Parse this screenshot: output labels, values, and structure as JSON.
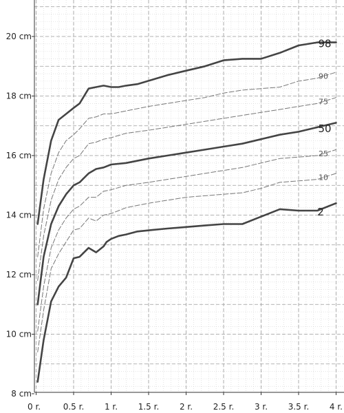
{
  "chart_data": {
    "type": "line",
    "title": "",
    "xlabel": "",
    "ylabel": "",
    "xlim": [
      0,
      4.0
    ],
    "ylim": [
      8,
      21
    ],
    "x_ticks": [
      {
        "value": 0,
        "label": "0 r."
      },
      {
        "value": 0.5,
        "label": "0.5 r."
      },
      {
        "value": 1,
        "label": "1 r."
      },
      {
        "value": 1.5,
        "label": "1.5 r."
      },
      {
        "value": 2,
        "label": "2 r."
      },
      {
        "value": 2.5,
        "label": "2.5 r."
      },
      {
        "value": 3,
        "label": "3 r."
      },
      {
        "value": 3.5,
        "label": "3.5 r."
      },
      {
        "value": 4,
        "label": "4 r."
      }
    ],
    "y_ticks": [
      {
        "value": 8,
        "label": "8 cm"
      },
      {
        "value": 10,
        "label": "10 cm"
      },
      {
        "value": 12,
        "label": "12 cm"
      },
      {
        "value": 14,
        "label": "14 cm"
      },
      {
        "value": 16,
        "label": "16 cm"
      },
      {
        "value": 18,
        "label": "18 cm"
      },
      {
        "value": 20,
        "label": "20 cm"
      }
    ],
    "grid": true,
    "series": [
      {
        "name": "2",
        "style": "major",
        "x": [
          0.02,
          0.1,
          0.2,
          0.3,
          0.4,
          0.5,
          0.58,
          0.7,
          0.8,
          0.9,
          0.94,
          1.0,
          1.1,
          1.2,
          1.35,
          1.55,
          1.75,
          2.0,
          2.25,
          2.5,
          2.75,
          3.0,
          3.25,
          3.5,
          3.75,
          4.0
        ],
        "values": [
          8.4,
          9.8,
          11.1,
          11.6,
          11.9,
          12.55,
          12.6,
          12.9,
          12.75,
          12.95,
          13.1,
          13.2,
          13.3,
          13.35,
          13.45,
          13.5,
          13.55,
          13.6,
          13.65,
          13.7,
          13.7,
          13.95,
          14.2,
          14.15,
          14.15,
          14.4
        ],
        "label": "2"
      },
      {
        "name": "10",
        "style": "minor",
        "x": [
          0.02,
          0.1,
          0.2,
          0.3,
          0.4,
          0.5,
          0.58,
          0.7,
          0.8,
          0.9,
          1.0,
          1.2,
          1.5,
          1.75,
          2.0,
          2.25,
          2.5,
          2.75,
          3.0,
          3.25,
          3.5,
          3.75,
          4.0
        ],
        "values": [
          9.4,
          10.8,
          12.2,
          12.7,
          13.1,
          13.5,
          13.55,
          13.9,
          13.8,
          14.0,
          14.05,
          14.25,
          14.4,
          14.5,
          14.6,
          14.65,
          14.7,
          14.75,
          14.9,
          15.1,
          15.15,
          15.2,
          15.4
        ],
        "label": "10"
      },
      {
        "name": "25",
        "style": "minor",
        "x": [
          0.02,
          0.1,
          0.2,
          0.3,
          0.4,
          0.5,
          0.58,
          0.7,
          0.8,
          0.9,
          1.0,
          1.2,
          1.5,
          1.75,
          2.0,
          2.25,
          2.5,
          2.75,
          3.0,
          3.25,
          3.5,
          3.75,
          4.0
        ],
        "values": [
          10.1,
          11.6,
          12.9,
          13.5,
          13.9,
          14.2,
          14.3,
          14.6,
          14.6,
          14.8,
          14.85,
          15.0,
          15.1,
          15.2,
          15.3,
          15.4,
          15.5,
          15.6,
          15.75,
          15.9,
          15.95,
          16.0,
          16.2
        ],
        "label": "25"
      },
      {
        "name": "50",
        "style": "major",
        "x": [
          0.02,
          0.1,
          0.2,
          0.3,
          0.4,
          0.5,
          0.58,
          0.7,
          0.8,
          0.9,
          1.0,
          1.2,
          1.5,
          1.75,
          2.0,
          2.25,
          2.5,
          2.75,
          3.0,
          3.25,
          3.5,
          3.75,
          4.0
        ],
        "values": [
          11.0,
          12.6,
          13.7,
          14.3,
          14.7,
          15.0,
          15.1,
          15.4,
          15.55,
          15.6,
          15.7,
          15.75,
          15.9,
          16.0,
          16.1,
          16.2,
          16.3,
          16.4,
          16.55,
          16.7,
          16.8,
          16.95,
          17.1
        ],
        "label": "50"
      },
      {
        "name": "75",
        "style": "minor",
        "x": [
          0.02,
          0.1,
          0.2,
          0.3,
          0.4,
          0.5,
          0.58,
          0.7,
          0.8,
          0.9,
          1.0,
          1.2,
          1.5,
          1.75,
          2.0,
          2.25,
          2.5,
          2.75,
          3.0,
          3.25,
          3.5,
          3.75,
          4.0
        ],
        "values": [
          11.8,
          13.3,
          14.5,
          15.2,
          15.6,
          15.9,
          16.0,
          16.4,
          16.45,
          16.55,
          16.6,
          16.75,
          16.85,
          16.95,
          17.05,
          17.15,
          17.25,
          17.35,
          17.45,
          17.55,
          17.65,
          17.75,
          17.95
        ],
        "label": "75"
      },
      {
        "name": "90",
        "style": "minor",
        "x": [
          0.02,
          0.1,
          0.2,
          0.3,
          0.4,
          0.5,
          0.58,
          0.7,
          0.8,
          0.9,
          1.0,
          1.2,
          1.5,
          1.75,
          2.0,
          2.25,
          2.5,
          2.75,
          3.0,
          3.25,
          3.5,
          3.75,
          4.0
        ],
        "values": [
          12.6,
          14.2,
          15.4,
          16.1,
          16.5,
          16.7,
          16.9,
          17.25,
          17.3,
          17.4,
          17.4,
          17.5,
          17.65,
          17.75,
          17.85,
          17.95,
          18.1,
          18.2,
          18.25,
          18.3,
          18.5,
          18.6,
          18.8
        ],
        "label": "90"
      },
      {
        "name": "98",
        "style": "major",
        "x": [
          0.02,
          0.1,
          0.2,
          0.3,
          0.4,
          0.5,
          0.58,
          0.7,
          0.8,
          0.9,
          1.0,
          1.1,
          1.2,
          1.35,
          1.55,
          1.75,
          2.0,
          2.25,
          2.5,
          2.75,
          3.0,
          3.25,
          3.5,
          3.75,
          4.0
        ],
        "values": [
          13.7,
          15.2,
          16.5,
          17.2,
          17.4,
          17.6,
          17.75,
          18.25,
          18.3,
          18.35,
          18.3,
          18.3,
          18.35,
          18.4,
          18.55,
          18.7,
          18.85,
          19.0,
          19.2,
          19.25,
          19.25,
          19.45,
          19.7,
          19.8,
          19.8
        ],
        "label": "98"
      }
    ]
  }
}
